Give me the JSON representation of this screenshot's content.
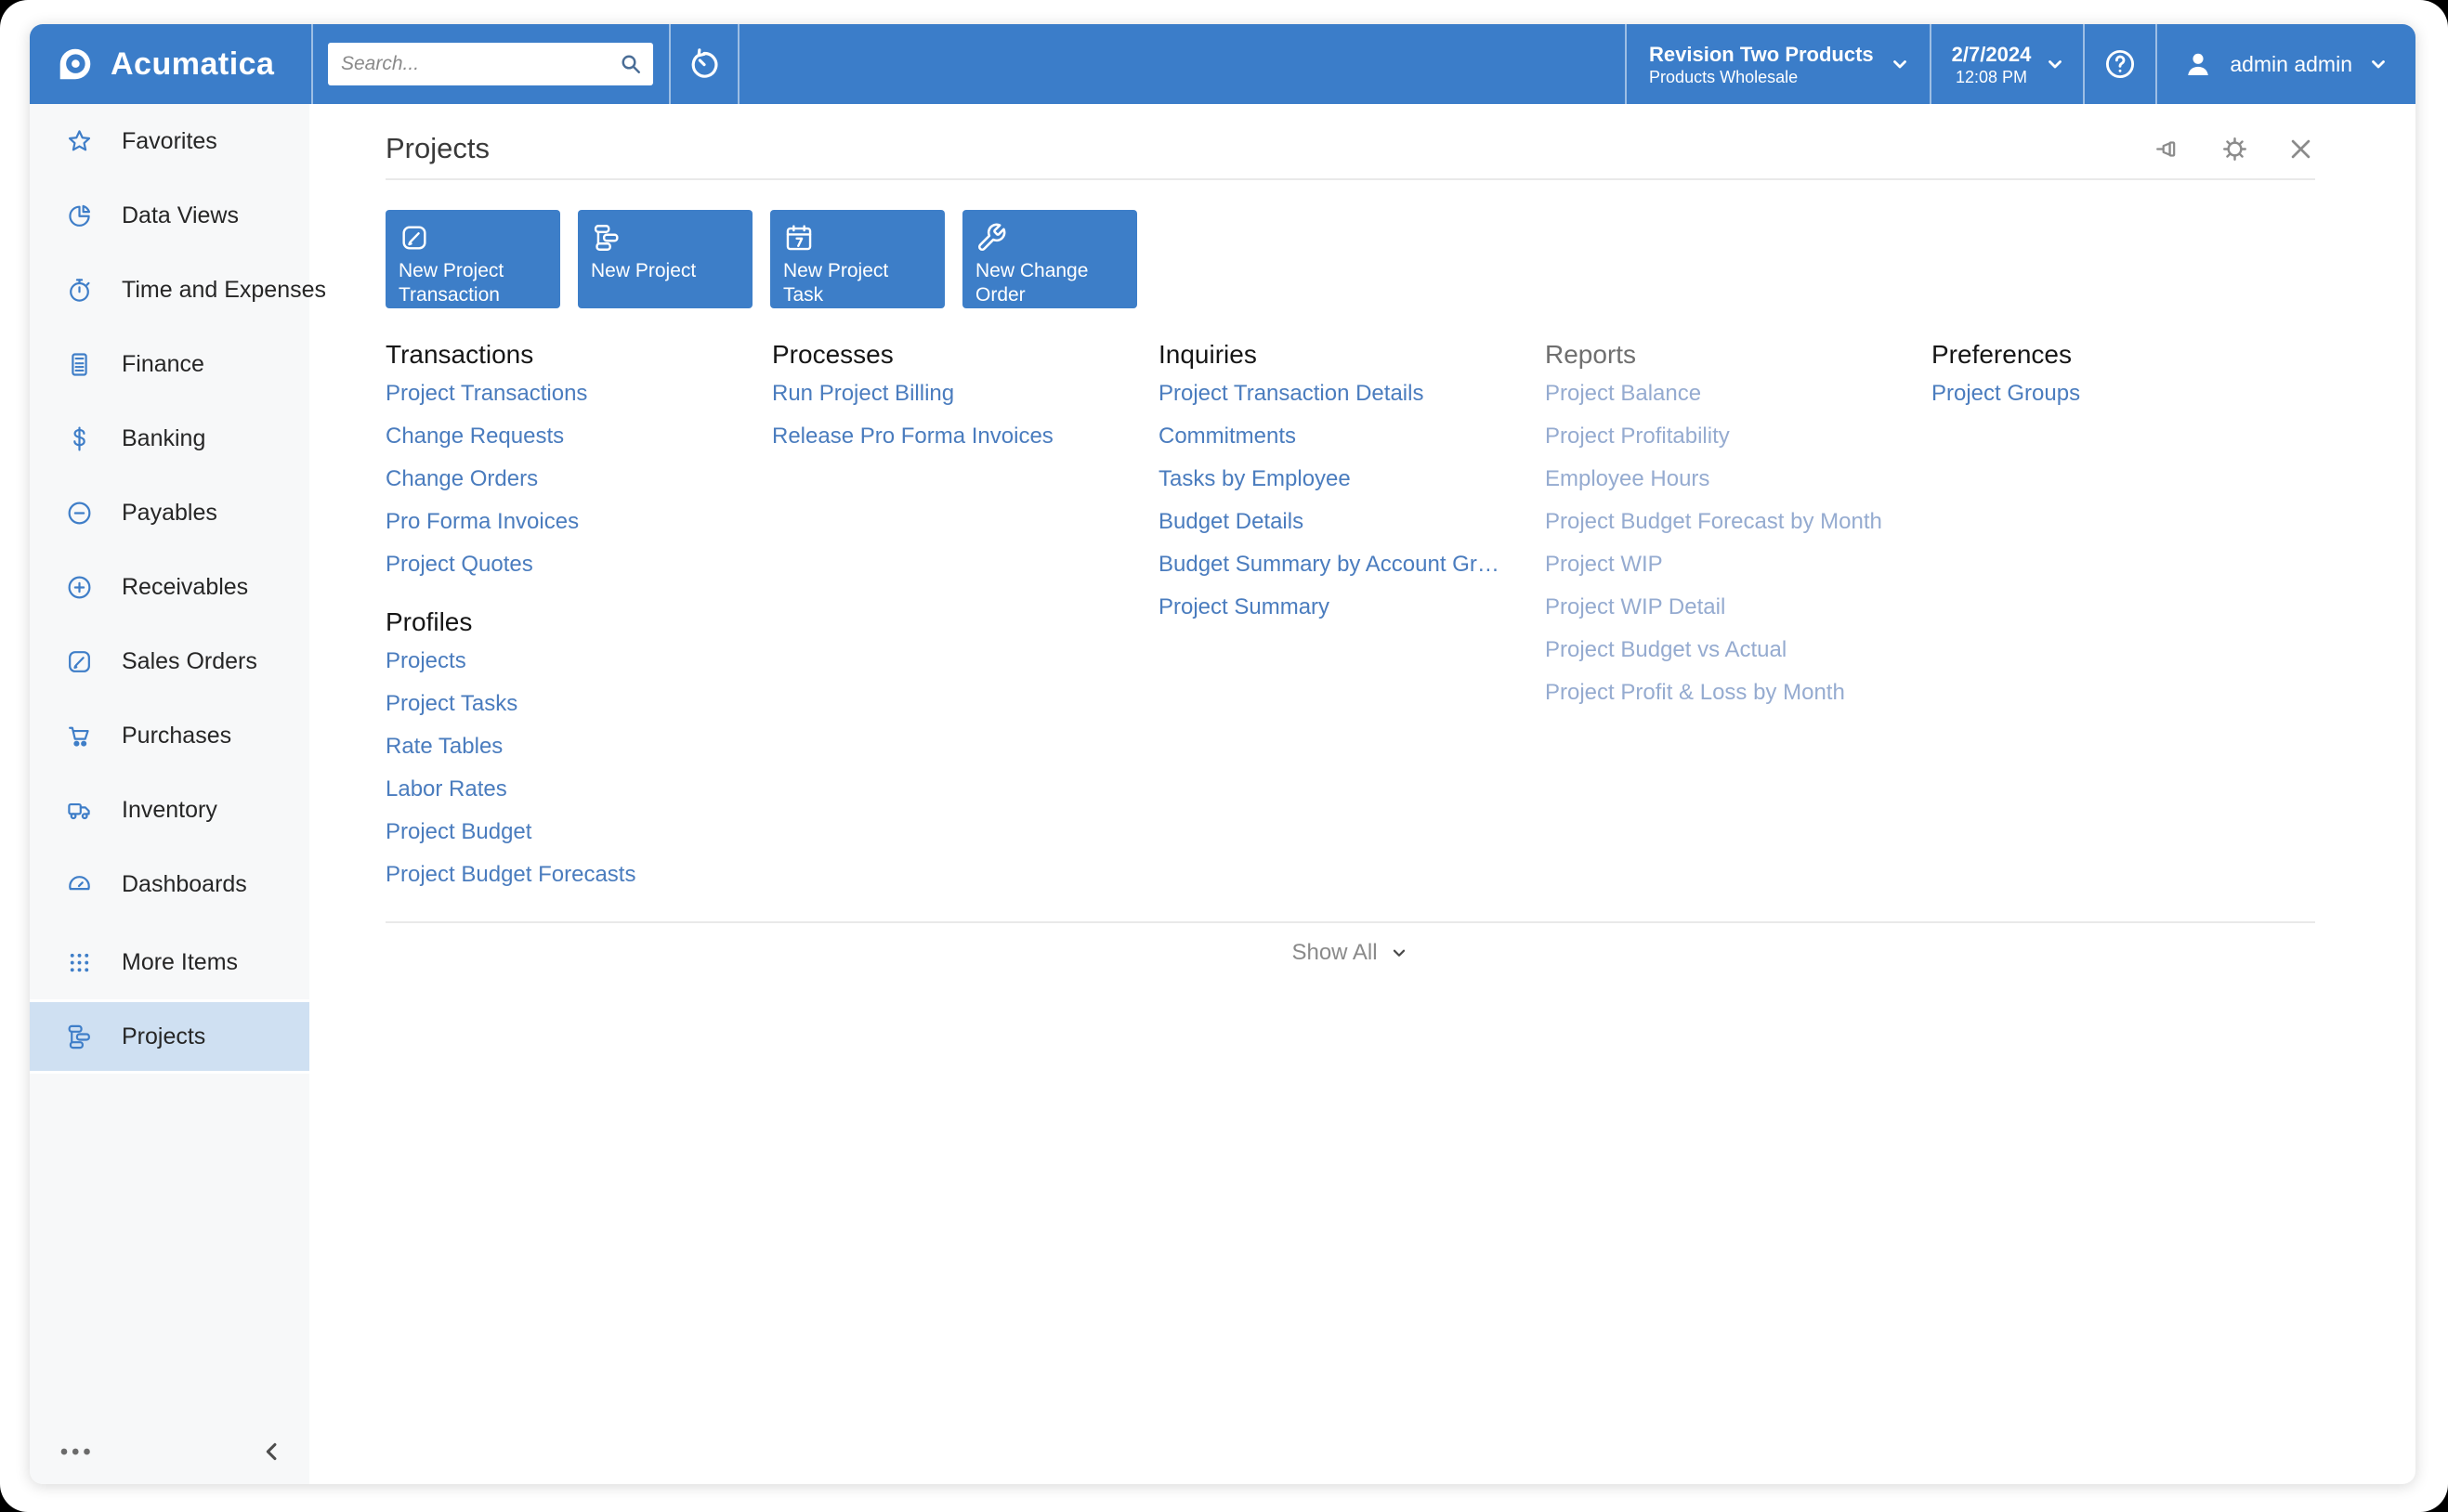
{
  "topbar": {
    "logo_text": "Acumatica",
    "search_placeholder": "Search...",
    "company": {
      "name": "Revision Two Products",
      "branch": "Products Wholesale"
    },
    "datetime": {
      "date": "2/7/2024",
      "time": "12:08 PM"
    },
    "user": {
      "name": "admin admin"
    }
  },
  "sidebar": {
    "items": [
      {
        "label": "Favorites",
        "icon": "star-icon"
      },
      {
        "label": "Data Views",
        "icon": "pie-chart-icon"
      },
      {
        "label": "Time and Expenses",
        "icon": "stopwatch-icon"
      },
      {
        "label": "Finance",
        "icon": "calculator-icon"
      },
      {
        "label": "Banking",
        "icon": "dollar-icon"
      },
      {
        "label": "Payables",
        "icon": "minus-circle-icon"
      },
      {
        "label": "Receivables",
        "icon": "plus-circle-icon"
      },
      {
        "label": "Sales Orders",
        "icon": "pencil-square-icon"
      },
      {
        "label": "Purchases",
        "icon": "cart-icon"
      },
      {
        "label": "Inventory",
        "icon": "truck-icon"
      },
      {
        "label": "Dashboards",
        "icon": "gauge-icon"
      },
      {
        "label": "More Items",
        "icon": "grid-dots-icon",
        "more": true
      },
      {
        "label": "Projects",
        "icon": "gantt-icon",
        "selected": true
      }
    ]
  },
  "page": {
    "title": "Projects",
    "tiles": [
      {
        "label": "New Project Transaction",
        "icon": "pencil-square-icon"
      },
      {
        "label": "New Project",
        "icon": "gantt-icon"
      },
      {
        "label": "New Project Task",
        "icon": "calendar-7-icon"
      },
      {
        "label": "New Change Order",
        "icon": "wrench-icon"
      }
    ],
    "sections": {
      "transactions": {
        "title": "Transactions",
        "links": [
          "Project Transactions",
          "Change Requests",
          "Change Orders",
          "Pro Forma Invoices",
          "Project Quotes"
        ]
      },
      "profiles": {
        "title": "Profiles",
        "links": [
          "Projects",
          "Project Tasks",
          "Rate Tables",
          "Labor Rates",
          "Project Budget",
          "Project Budget Forecasts"
        ]
      },
      "processes": {
        "title": "Processes",
        "links": [
          "Run Project Billing",
          "Release Pro Forma Invoices"
        ]
      },
      "inquiries": {
        "title": "Inquiries",
        "links": [
          "Project Transaction Details",
          "Commitments",
          "Tasks by Employee",
          "Budget Details",
          "Budget Summary by Account Gr…",
          "Project Summary"
        ]
      },
      "reports": {
        "title": "Reports",
        "muted": true,
        "links": [
          "Project Balance",
          "Project Profitability",
          "Employee Hours",
          "Project Budget Forecast by Month",
          "Project WIP",
          "Project WIP Detail",
          "Project Budget vs Actual",
          "Project Profit & Loss by Month"
        ]
      },
      "preferences": {
        "title": "Preferences",
        "links": [
          "Project Groups"
        ]
      }
    },
    "show_all_label": "Show All"
  },
  "colors": {
    "topbar_blue": "#3b7dc9",
    "tile_blue": "#3d7ec8",
    "link_blue": "#4a7cbe",
    "muted_link_blue": "#95abd0",
    "selected_item_bg": "#cfe0f2"
  }
}
